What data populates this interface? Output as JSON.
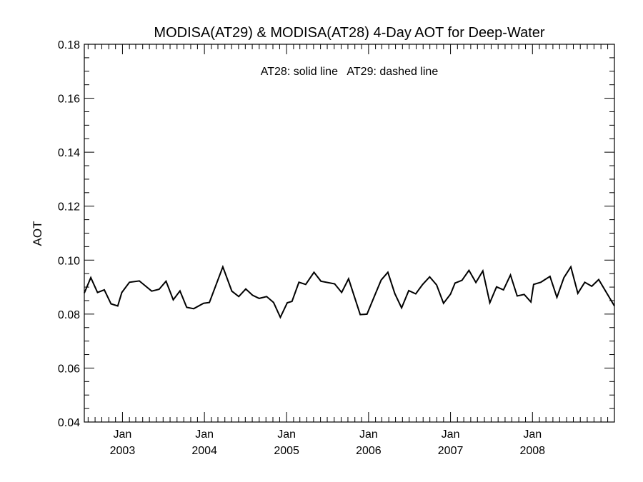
{
  "chart_data": {
    "type": "line",
    "title": "MODISA(AT29) & MODISA(AT28) 4-Day AOT for Deep-Water",
    "xlabel": "",
    "ylabel": "AOT",
    "annotation": "AT28: solid line   AT29: dashed line",
    "ylim": [
      0.04,
      0.18
    ],
    "xlim": [
      "2002-07-15",
      "2008-12-31"
    ],
    "y_ticks": [
      "0.04",
      "0.06",
      "0.08",
      "0.10",
      "0.12",
      "0.14",
      "0.16",
      "0.18"
    ],
    "x_ticks": [
      {
        "date": "2003-01-01",
        "month": "Jan",
        "year": "2003"
      },
      {
        "date": "2004-01-01",
        "month": "Jan",
        "year": "2004"
      },
      {
        "date": "2005-01-01",
        "month": "Jan",
        "year": "2005"
      },
      {
        "date": "2006-01-01",
        "month": "Jan",
        "year": "2006"
      },
      {
        "date": "2007-01-01",
        "month": "Jan",
        "year": "2007"
      },
      {
        "date": "2008-01-01",
        "month": "Jan",
        "year": "2008"
      }
    ],
    "grid": false,
    "series": [
      {
        "name": "AT28",
        "style": "solid",
        "color": "#000000",
        "points": [
          [
            "2002-07-15",
            0.0878
          ],
          [
            "2002-08-13",
            0.0935
          ],
          [
            "2002-09-12",
            0.088
          ],
          [
            "2002-10-12",
            0.089
          ],
          [
            "2002-11-11",
            0.0838
          ],
          [
            "2002-12-11",
            0.083
          ],
          [
            "2002-12-29",
            0.088
          ],
          [
            "2003-02-01",
            0.0918
          ],
          [
            "2003-03-17",
            0.0923
          ],
          [
            "2003-05-11",
            0.0885
          ],
          [
            "2003-06-13",
            0.0892
          ],
          [
            "2003-07-14",
            0.0922
          ],
          [
            "2003-08-15",
            0.0853
          ],
          [
            "2003-09-14",
            0.0886
          ],
          [
            "2003-10-14",
            0.0825
          ],
          [
            "2003-11-14",
            0.082
          ],
          [
            "2003-12-28",
            0.084
          ],
          [
            "2004-01-23",
            0.0843
          ],
          [
            "2004-03-23",
            0.0975
          ],
          [
            "2004-05-02",
            0.0885
          ],
          [
            "2004-06-02",
            0.0865
          ],
          [
            "2004-07-03",
            0.0893
          ],
          [
            "2004-08-02",
            0.087
          ],
          [
            "2004-09-01",
            0.0858
          ],
          [
            "2004-10-04",
            0.0865
          ],
          [
            "2004-11-04",
            0.0843
          ],
          [
            "2004-12-04",
            0.0788
          ],
          [
            "2005-01-04",
            0.0842
          ],
          [
            "2005-01-25",
            0.0847
          ],
          [
            "2005-02-25",
            0.0918
          ],
          [
            "2005-03-27",
            0.091
          ],
          [
            "2005-05-03",
            0.0955
          ],
          [
            "2005-06-03",
            0.0922
          ],
          [
            "2005-08-03",
            0.0912
          ],
          [
            "2005-09-03",
            0.088
          ],
          [
            "2005-10-04",
            0.0931
          ],
          [
            "2005-11-25",
            0.0798
          ],
          [
            "2005-12-25",
            0.08
          ],
          [
            "2006-01-25",
            0.0862
          ],
          [
            "2006-02-26",
            0.0926
          ],
          [
            "2006-03-28",
            0.0955
          ],
          [
            "2006-04-28",
            0.0876
          ],
          [
            "2006-05-28",
            0.0823
          ],
          [
            "2006-06-29",
            0.0887
          ],
          [
            "2006-07-30",
            0.0875
          ],
          [
            "2006-08-30",
            0.091
          ],
          [
            "2006-09-30",
            0.0938
          ],
          [
            "2006-10-31",
            0.0908
          ],
          [
            "2006-12-01",
            0.084
          ],
          [
            "2007-01-01",
            0.0874
          ],
          [
            "2007-01-21",
            0.0915
          ],
          [
            "2007-02-21",
            0.0925
          ],
          [
            "2007-03-24",
            0.0962
          ],
          [
            "2007-04-24",
            0.0917
          ],
          [
            "2007-05-25",
            0.096
          ],
          [
            "2007-06-25",
            0.0842
          ],
          [
            "2007-07-25",
            0.0901
          ],
          [
            "2007-08-25",
            0.089
          ],
          [
            "2007-09-25",
            0.0945
          ],
          [
            "2007-10-25",
            0.0867
          ],
          [
            "2007-11-25",
            0.0873
          ],
          [
            "2007-12-25",
            0.0845
          ],
          [
            "2008-01-06",
            0.091
          ],
          [
            "2008-02-07",
            0.0918
          ],
          [
            "2008-03-19",
            0.094
          ],
          [
            "2008-04-19",
            0.0862
          ],
          [
            "2008-05-20",
            0.0935
          ],
          [
            "2008-06-20",
            0.0975
          ],
          [
            "2008-07-21",
            0.0877
          ],
          [
            "2008-08-21",
            0.0918
          ],
          [
            "2008-09-21",
            0.0903
          ],
          [
            "2008-10-22",
            0.0928
          ],
          [
            "2008-12-31",
            0.083
          ]
        ]
      }
    ]
  }
}
